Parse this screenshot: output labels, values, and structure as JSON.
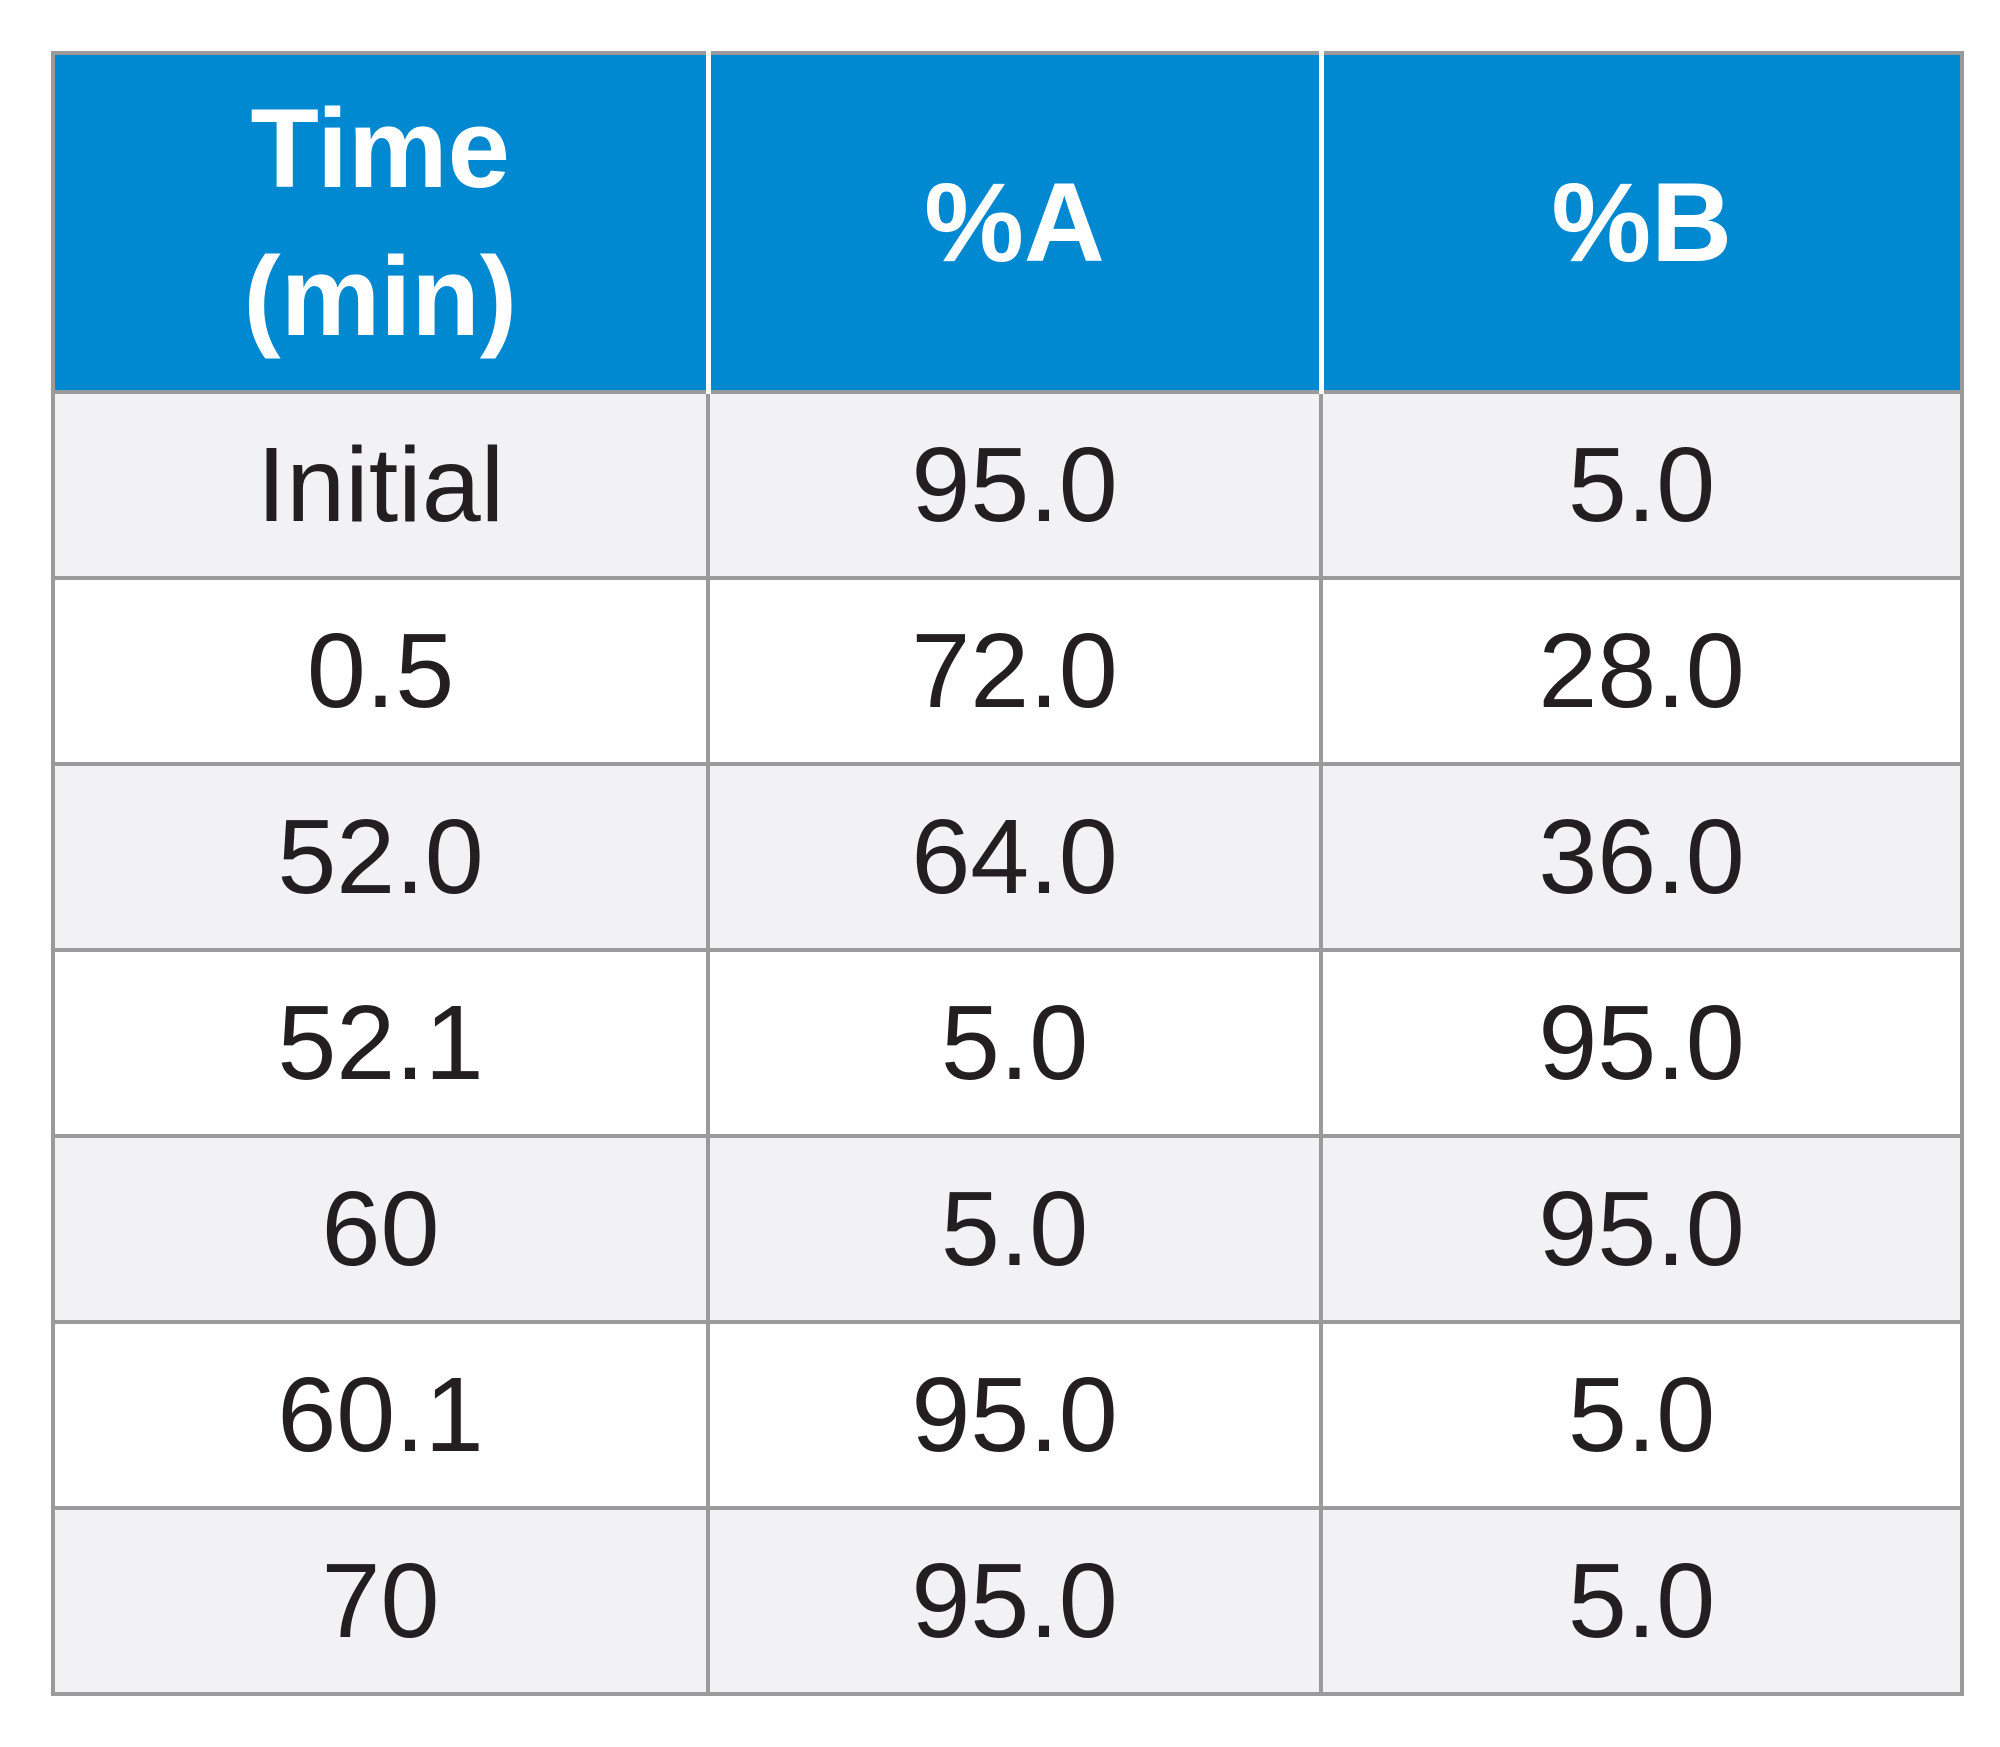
{
  "table": {
    "header": {
      "time_line1": "Time",
      "time_line2": "(min)",
      "col_a": "%A",
      "col_b": "%B"
    },
    "rows": [
      {
        "time": "Initial",
        "a": "95.0",
        "b": "5.0"
      },
      {
        "time": "0.5",
        "a": "72.0",
        "b": "28.0"
      },
      {
        "time": "52.0",
        "a": "64.0",
        "b": "36.0"
      },
      {
        "time": "52.1",
        "a": "5.0",
        "b": "95.0"
      },
      {
        "time": "60",
        "a": "5.0",
        "b": "95.0"
      },
      {
        "time": "60.1",
        "a": "95.0",
        "b": "5.0"
      },
      {
        "time": "70",
        "a": "95.0",
        "b": "5.0"
      }
    ]
  },
  "colors": {
    "header_bg": "#0089d0",
    "header_text": "#ffffff",
    "row_alt_bg": "#f2f2f4",
    "row_bg": "#ffffff",
    "grid": "#9a9a9a",
    "body_text": "#231f20"
  }
}
